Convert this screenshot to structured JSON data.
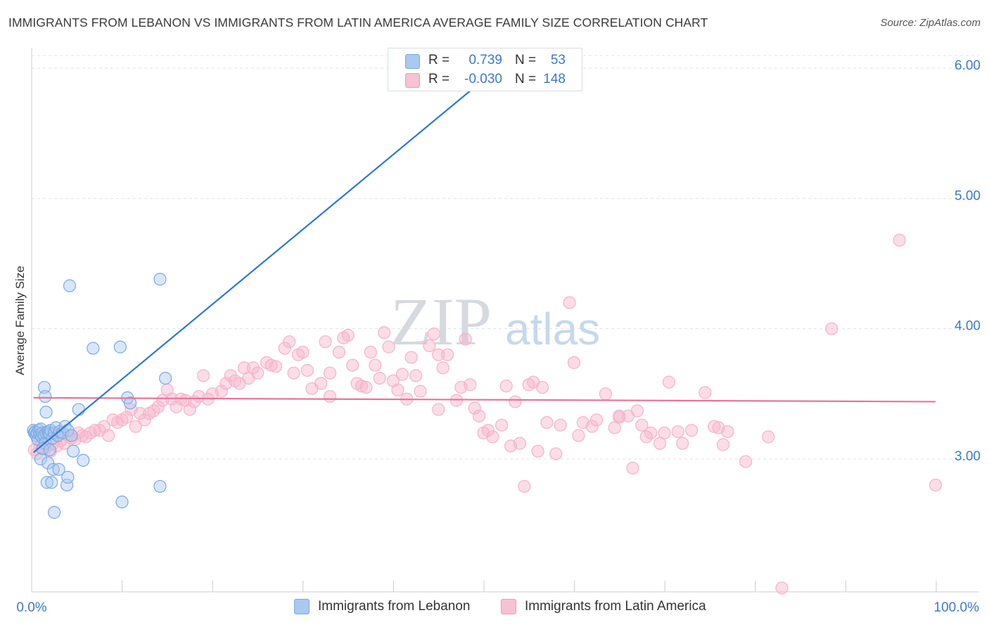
{
  "title": "IMMIGRANTS FROM LEBANON VS IMMIGRANTS FROM LATIN AMERICA AVERAGE FAMILY SIZE CORRELATION CHART",
  "source": "Source: ZipAtlas.com",
  "watermark": {
    "zip": "ZIP",
    "atlas": "atlas"
  },
  "colors": {
    "blue": "#2f78d0",
    "blue_fill": "#aac8f0",
    "pink": "#e8739d",
    "pink_fill": "#f6b3c9",
    "value_text": "#3d78c9",
    "grid": "#dde3ea"
  },
  "stats": {
    "row1": {
      "r_label": "R =",
      "r_value": "0.739",
      "n_label": "N =",
      "n_value": "53"
    },
    "row2": {
      "r_label": "R =",
      "r_value": "-0.030",
      "n_label": "N =",
      "n_value": "148"
    }
  },
  "legend": {
    "series1": "Immigrants from Lebanon",
    "series2": "Immigrants from Latin America"
  },
  "chart_data": {
    "type": "scatter",
    "ylabel": "Average Family Size",
    "xlabel": "",
    "x_tick_labels": [
      "0.0%",
      "100.0%"
    ],
    "y_tick_labels": [
      "3.00",
      "4.00",
      "5.00",
      "6.00"
    ],
    "y_ticks": [
      3,
      4,
      5,
      6
    ],
    "xlim": [
      0,
      100
    ],
    "ylim": [
      2.05,
      6.1
    ],
    "grid": true,
    "legend_position": "bottom",
    "series": [
      {
        "name": "Immigrants from Lebanon",
        "color": "#2f78d0",
        "trend": {
          "x": [
            0.2,
            49.8
          ],
          "y": [
            3.05,
            5.9
          ]
        },
        "points": [
          [
            0.2,
            3.22
          ],
          [
            0.3,
            3.2
          ],
          [
            0.4,
            3.21
          ],
          [
            0.5,
            3.18
          ],
          [
            0.6,
            3.2
          ],
          [
            0.7,
            3.15
          ],
          [
            0.8,
            3.22
          ],
          [
            0.9,
            3.19
          ],
          [
            1.0,
            3.23
          ],
          [
            1.1,
            3.17
          ],
          [
            1.2,
            3.2
          ],
          [
            1.4,
            3.18
          ],
          [
            1.5,
            3.12
          ],
          [
            1.6,
            3.2
          ],
          [
            1.8,
            3.21
          ],
          [
            1.9,
            3.2
          ],
          [
            2.0,
            3.19
          ],
          [
            2.1,
            3.22
          ],
          [
            2.3,
            3.16
          ],
          [
            2.5,
            3.2
          ],
          [
            2.7,
            3.24
          ],
          [
            2.9,
            3.18
          ],
          [
            3.1,
            3.21
          ],
          [
            3.4,
            3.2
          ],
          [
            3.7,
            3.25
          ],
          [
            4.0,
            3.22
          ],
          [
            4.4,
            3.18
          ],
          [
            1.0,
            3.0
          ],
          [
            1.2,
            3.08
          ],
          [
            1.4,
            3.55
          ],
          [
            1.5,
            3.48
          ],
          [
            1.6,
            3.36
          ],
          [
            1.7,
            2.82
          ],
          [
            1.8,
            2.97
          ],
          [
            2.0,
            3.07
          ],
          [
            2.2,
            2.82
          ],
          [
            2.4,
            2.92
          ],
          [
            2.5,
            2.59
          ],
          [
            3.0,
            2.92
          ],
          [
            3.9,
            2.8
          ],
          [
            4.0,
            2.86
          ],
          [
            4.2,
            4.33
          ],
          [
            4.6,
            3.06
          ],
          [
            5.2,
            3.38
          ],
          [
            5.7,
            2.99
          ],
          [
            6.8,
            3.85
          ],
          [
            9.8,
            3.86
          ],
          [
            10.0,
            2.67
          ],
          [
            10.6,
            3.47
          ],
          [
            10.9,
            3.43
          ],
          [
            14.2,
            4.38
          ],
          [
            14.2,
            2.79
          ],
          [
            14.8,
            3.62
          ]
        ]
      },
      {
        "name": "Immigrants from Latin America",
        "color": "#e8739d",
        "trend": {
          "x": [
            0.2,
            100
          ],
          "y": [
            3.47,
            3.44
          ]
        },
        "points": [
          [
            0.3,
            3.07
          ],
          [
            0.6,
            3.04
          ],
          [
            0.9,
            3.1
          ],
          [
            1.2,
            3.12
          ],
          [
            1.5,
            3.08
          ],
          [
            1.8,
            3.1
          ],
          [
            2.1,
            3.06
          ],
          [
            2.4,
            3.12
          ],
          [
            2.8,
            3.1
          ],
          [
            3.2,
            3.14
          ],
          [
            3.6,
            3.12
          ],
          [
            4.0,
            3.18
          ],
          [
            4.4,
            3.16
          ],
          [
            4.8,
            3.15
          ],
          [
            5.2,
            3.2
          ],
          [
            5.6,
            3.18
          ],
          [
            6.0,
            3.17
          ],
          [
            6.5,
            3.2
          ],
          [
            7.0,
            3.22
          ],
          [
            7.5,
            3.22
          ],
          [
            8.0,
            3.25
          ],
          [
            8.5,
            3.18
          ],
          [
            9.0,
            3.3
          ],
          [
            9.5,
            3.28
          ],
          [
            10.0,
            3.3
          ],
          [
            10.5,
            3.32
          ],
          [
            11.0,
            3.38
          ],
          [
            11.5,
            3.25
          ],
          [
            12.0,
            3.35
          ],
          [
            12.5,
            3.3
          ],
          [
            13.0,
            3.35
          ],
          [
            13.5,
            3.37
          ],
          [
            14.0,
            3.4
          ],
          [
            14.5,
            3.45
          ],
          [
            15.0,
            3.53
          ],
          [
            15.5,
            3.46
          ],
          [
            16.0,
            3.4
          ],
          [
            16.5,
            3.46
          ],
          [
            17.0,
            3.45
          ],
          [
            17.5,
            3.38
          ],
          [
            18.0,
            3.44
          ],
          [
            18.5,
            3.48
          ],
          [
            19.0,
            3.64
          ],
          [
            19.5,
            3.46
          ],
          [
            20.0,
            3.5
          ],
          [
            21.0,
            3.52
          ],
          [
            21.5,
            3.58
          ],
          [
            22.0,
            3.64
          ],
          [
            22.5,
            3.6
          ],
          [
            23.0,
            3.58
          ],
          [
            23.5,
            3.7
          ],
          [
            24.0,
            3.62
          ],
          [
            24.5,
            3.7
          ],
          [
            25.0,
            3.66
          ],
          [
            26.0,
            3.74
          ],
          [
            26.5,
            3.72
          ],
          [
            27.0,
            3.71
          ],
          [
            28.0,
            3.85
          ],
          [
            28.5,
            3.9
          ],
          [
            29.0,
            3.66
          ],
          [
            29.5,
            3.8
          ],
          [
            30.0,
            3.82
          ],
          [
            30.5,
            3.68
          ],
          [
            31.0,
            3.54
          ],
          [
            32.0,
            3.58
          ],
          [
            32.5,
            3.9
          ],
          [
            33.0,
            3.66
          ],
          [
            34.0,
            3.82
          ],
          [
            34.5,
            3.93
          ],
          [
            35.0,
            3.95
          ],
          [
            35.5,
            3.72
          ],
          [
            36.0,
            3.58
          ],
          [
            36.5,
            3.56
          ],
          [
            37.0,
            3.55
          ],
          [
            37.5,
            3.82
          ],
          [
            38.0,
            3.72
          ],
          [
            38.5,
            3.62
          ],
          [
            39.0,
            3.97
          ],
          [
            39.5,
            3.86
          ],
          [
            40.0,
            3.6
          ],
          [
            40.5,
            3.53
          ],
          [
            41.0,
            3.65
          ],
          [
            41.5,
            3.46
          ],
          [
            42.0,
            3.78
          ],
          [
            42.5,
            3.64
          ],
          [
            43.0,
            3.52
          ],
          [
            44.0,
            3.87
          ],
          [
            44.5,
            3.96
          ],
          [
            45.0,
            3.8
          ],
          [
            45.5,
            3.7
          ],
          [
            46.0,
            3.8
          ],
          [
            47.0,
            3.45
          ],
          [
            47.5,
            3.55
          ],
          [
            48.0,
            3.92
          ],
          [
            48.5,
            3.57
          ],
          [
            49.0,
            3.39
          ],
          [
            49.5,
            3.33
          ],
          [
            50.0,
            3.2
          ],
          [
            50.5,
            3.22
          ],
          [
            51.0,
            3.17
          ],
          [
            52.0,
            3.26
          ],
          [
            52.5,
            3.56
          ],
          [
            53.0,
            3.1
          ],
          [
            53.5,
            3.44
          ],
          [
            54.0,
            3.12
          ],
          [
            54.5,
            2.79
          ],
          [
            55.0,
            3.57
          ],
          [
            55.5,
            3.59
          ],
          [
            56.0,
            3.06
          ],
          [
            56.5,
            3.55
          ],
          [
            57.0,
            3.28
          ],
          [
            58.0,
            3.04
          ],
          [
            58.5,
            3.26
          ],
          [
            59.5,
            4.2
          ],
          [
            60.0,
            3.74
          ],
          [
            60.5,
            3.18
          ],
          [
            61.0,
            3.28
          ],
          [
            62.0,
            3.25
          ],
          [
            62.5,
            3.3
          ],
          [
            63.5,
            3.5
          ],
          [
            64.5,
            3.24
          ],
          [
            65.0,
            3.33
          ],
          [
            66.0,
            3.33
          ],
          [
            66.5,
            2.93
          ],
          [
            67.0,
            3.37
          ],
          [
            67.5,
            3.26
          ],
          [
            68.0,
            3.17
          ],
          [
            68.5,
            3.2
          ],
          [
            69.5,
            3.12
          ],
          [
            70.0,
            3.2
          ],
          [
            70.5,
            3.59
          ],
          [
            71.5,
            3.21
          ],
          [
            72.0,
            3.12
          ],
          [
            73.0,
            3.22
          ],
          [
            74.5,
            3.51
          ],
          [
            75.5,
            3.25
          ],
          [
            76.0,
            3.24
          ],
          [
            76.5,
            3.11
          ],
          [
            77.0,
            3.21
          ],
          [
            79.0,
            2.98
          ],
          [
            81.5,
            3.17
          ],
          [
            83.0,
            2.01
          ],
          [
            88.5,
            4.0
          ],
          [
            96.0,
            4.68
          ],
          [
            100.0,
            2.8
          ],
          [
            65.0,
            3.32
          ],
          [
            45.0,
            3.38
          ],
          [
            33.0,
            3.48
          ]
        ]
      }
    ]
  }
}
